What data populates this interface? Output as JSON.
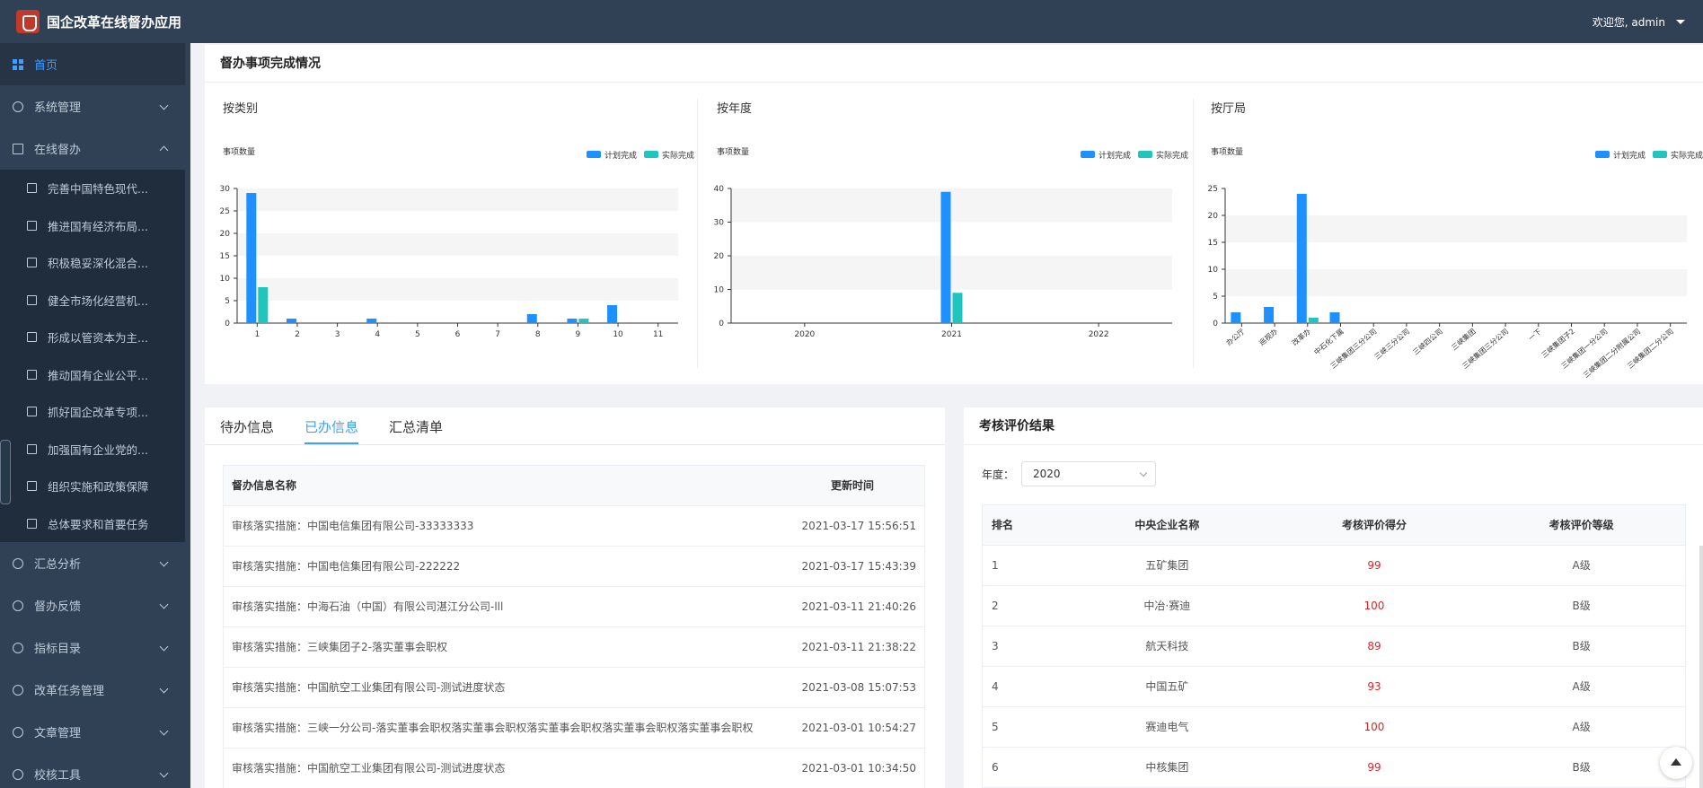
{
  "header": {
    "title": "国企改革在线督办应用",
    "welcome": "欢迎您, admin"
  },
  "sidebar": {
    "items": [
      {
        "label": "首页",
        "icon": "grid-icon"
      },
      {
        "label": "系统管理",
        "icon": "cloud-icon"
      },
      {
        "label": "在线督办",
        "icon": "book-icon"
      }
    ],
    "sub_items": [
      "完善中国特色现代...",
      "推进国有经济布局...",
      "积极稳妥深化混合...",
      "健全市场化经营机...",
      "形成以管资本为主...",
      "推动国有企业公平...",
      "抓好国企改革专项...",
      "加强国有企业党的...",
      "组织实施和政策保障",
      "总体要求和首要任务"
    ],
    "bottom_items": [
      {
        "label": "汇总分析",
        "icon": "pie-icon"
      },
      {
        "label": "督办反馈",
        "icon": "monitor-icon"
      },
      {
        "label": "指标目录",
        "icon": "user-tree-icon"
      },
      {
        "label": "改革任务管理",
        "icon": "link-icon"
      },
      {
        "label": "文章管理",
        "icon": "tools-icon"
      },
      {
        "label": "校核工具",
        "icon": "code-icon"
      }
    ]
  },
  "overview": {
    "title": "督办事项完成情况"
  },
  "chart_colors": {
    "plan": "#1e90ff",
    "actual": "#20c6bd"
  },
  "chart_data": [
    {
      "type": "bar",
      "title": "按类别",
      "ylabel": "事项数量",
      "legend": [
        "计划完成",
        "实际完成"
      ],
      "legend_position": "top-right",
      "categories": [
        "1",
        "2",
        "3",
        "4",
        "5",
        "6",
        "7",
        "8",
        "9",
        "10",
        "11"
      ],
      "series": [
        {
          "name": "计划完成",
          "values": [
            29,
            1,
            0,
            1,
            0,
            0,
            0,
            2,
            1,
            4,
            0
          ]
        },
        {
          "name": "实际完成",
          "values": [
            8,
            0,
            0,
            0,
            0,
            0,
            0,
            0,
            1,
            0,
            0
          ]
        }
      ],
      "ylim": [
        0,
        30
      ],
      "yticks": [
        0,
        5,
        10,
        15,
        20,
        25,
        30
      ]
    },
    {
      "type": "bar",
      "title": "按年度",
      "ylabel": "事项数量",
      "legend": [
        "计划完成",
        "实际完成"
      ],
      "legend_position": "top-right",
      "categories": [
        "2020",
        "2021",
        "2022"
      ],
      "series": [
        {
          "name": "计划完成",
          "values": [
            0,
            39,
            0
          ]
        },
        {
          "name": "实际完成",
          "values": [
            0,
            9,
            0
          ]
        }
      ],
      "ylim": [
        0,
        40
      ],
      "yticks": [
        0,
        10,
        20,
        30,
        40
      ]
    },
    {
      "type": "bar",
      "title": "按厅局",
      "ylabel": "事项数量",
      "legend": [
        "计划完成",
        "实际完成"
      ],
      "legend_position": "top-right",
      "categories": [
        "办公厅",
        "巡视办",
        "改革办",
        "中石化下属",
        "三峡集团三分公司",
        "三峡三分公司",
        "三峡四公司",
        "三峡集团",
        "三峡集团三分公司",
        "一下",
        "三峡集团子2",
        "三峡集团一分公司",
        "三峡集团二分附属公司",
        "三峡集团二分公司"
      ],
      "series": [
        {
          "name": "计划完成",
          "values": [
            2,
            3,
            24,
            2,
            0,
            0,
            0,
            0,
            0,
            0,
            0,
            0,
            0,
            0
          ]
        },
        {
          "name": "实际完成",
          "values": [
            0,
            0,
            1,
            0,
            0,
            0,
            0,
            0,
            0,
            0,
            0,
            0,
            0,
            0
          ]
        }
      ],
      "ylim": [
        0,
        25
      ],
      "yticks": [
        0,
        5,
        10,
        15,
        20,
        25
      ]
    }
  ],
  "tabs": [
    "待办信息",
    "已办信息",
    "汇总清单"
  ],
  "done_list": {
    "columns": [
      "督办信息名称",
      "更新时间"
    ],
    "rows": [
      {
        "name": "审核落实措施：中国电信集团有限公司-33333333",
        "time": "2021-03-17 15:56:51"
      },
      {
        "name": "审核落实措施：中国电信集团有限公司-222222",
        "time": "2021-03-17 15:43:39"
      },
      {
        "name": "审核落实措施：中海石油（中国）有限公司湛江分公司-lll",
        "time": "2021-03-11 21:40:26"
      },
      {
        "name": "审核落实措施：三峡集团子2-落实董事会职权",
        "time": "2021-03-11 21:38:22"
      },
      {
        "name": "审核落实措施：中国航空工业集团有限公司-测试进度状态",
        "time": "2021-03-08 15:07:53"
      },
      {
        "name": "审核落实措施：三峡一分公司-落实董事会职权落实董事会职权落实董事会职权落实董事会职权落实董事会职权",
        "time": "2021-03-01 10:54:27"
      },
      {
        "name": "审核落实措施：中国航空工业集团有限公司-测试进度状态",
        "time": "2021-03-01 10:34:50"
      }
    ]
  },
  "evaluation": {
    "title": "考核评价结果",
    "year_label": "年度：",
    "year_value": "2020",
    "columns": [
      "排名",
      "中央企业名称",
      "考核评价得分",
      "考核评价等级"
    ],
    "rows": [
      {
        "rank": "1",
        "name": "五矿集团",
        "score": "99",
        "grade": "A级"
      },
      {
        "rank": "2",
        "name": "中冶·赛迪",
        "score": "100",
        "grade": "B级"
      },
      {
        "rank": "3",
        "name": "航天科技",
        "score": "89",
        "grade": "B级"
      },
      {
        "rank": "4",
        "name": "中国五矿",
        "score": "93",
        "grade": "A级"
      },
      {
        "rank": "5",
        "name": "赛迪电气",
        "score": "100",
        "grade": "A级"
      },
      {
        "rank": "6",
        "name": "中核集团",
        "score": "99",
        "grade": "B级"
      }
    ]
  }
}
